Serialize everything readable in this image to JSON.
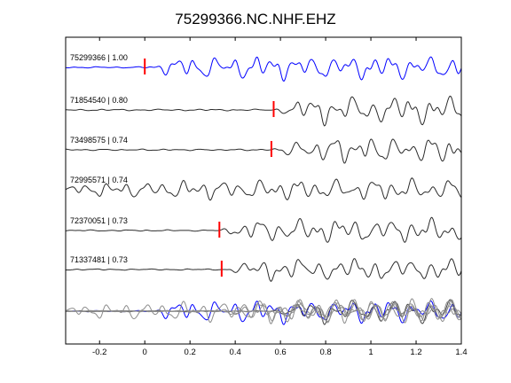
{
  "chart_data": {
    "type": "line",
    "title": "75299366.NC.NHF.EHZ",
    "xlabel": "",
    "ylabel": "",
    "xlim": [
      -0.35,
      1.4
    ],
    "xticks": [
      -0.2,
      0,
      0.2,
      0.4,
      0.6,
      0.8,
      1,
      1.2,
      1.4
    ],
    "xtick_labels": [
      "-0.2",
      "0",
      "0.2",
      "0.4",
      "0.6",
      "0.8",
      "1",
      "1.2",
      "1.4"
    ],
    "grid": false,
    "legend": "none",
    "colors": {
      "primary": "#0000ff",
      "secondary": "#2b2b2b",
      "stack_other": "#8c8c8c",
      "pick": "#ff0000",
      "axes": "#000000"
    },
    "series": [
      {
        "name": "75299366",
        "label": "75299366 | 1.00",
        "pick_time": 0.0,
        "color": "#0000ff"
      },
      {
        "name": "71854540",
        "label": "71854540 | 0.80",
        "pick_time": 0.57,
        "color": "#2b2b2b"
      },
      {
        "name": "73498575",
        "label": "73498575 | 0.74",
        "pick_time": 0.56,
        "color": "#2b2b2b"
      },
      {
        "name": "72995571",
        "label": "72995571 | 0.74",
        "pick_time": null,
        "color": "#2b2b2b"
      },
      {
        "name": "72370051",
        "label": "72370051 | 0.73",
        "pick_time": 0.33,
        "color": "#2b2b2b"
      },
      {
        "name": "71337481",
        "label": "71337481 | 0.73",
        "pick_time": 0.34,
        "color": "#2b2b2b"
      }
    ]
  }
}
